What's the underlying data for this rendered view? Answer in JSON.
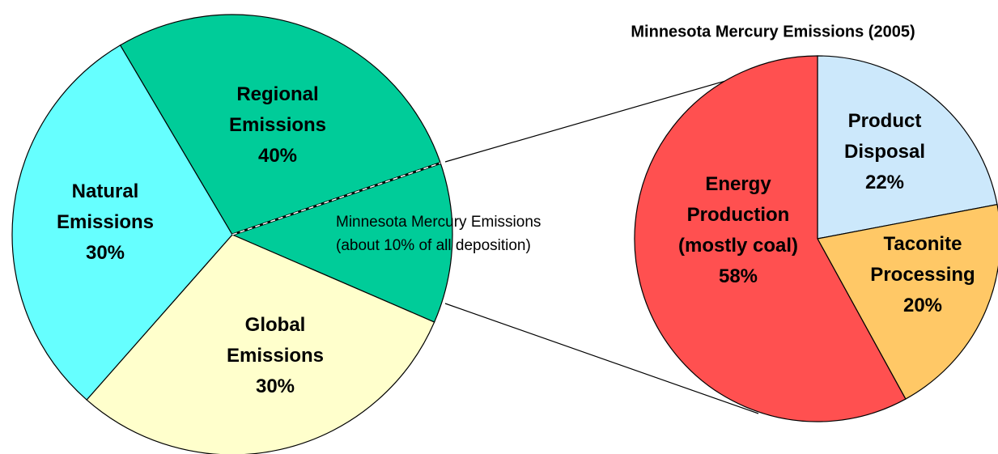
{
  "chart_data": [
    {
      "type": "pie",
      "categories": [
        "Regional\nEmissions",
        "Global\nEmissions",
        "Natural\nEmissions"
      ],
      "values": [
        40,
        30,
        30
      ],
      "value_labels": [
        "40%",
        "30%",
        "30%"
      ],
      "colors": [
        "#00cc99",
        "#ffffcc",
        "#66ffff"
      ],
      "annotation": "Minnesota Mercury Emissions\n(about 10% of all deposition)"
    },
    {
      "type": "pie",
      "title": "Minnesota Mercury Emissions (2005)",
      "categories": [
        "Product\nDisposal",
        "Taconite\nProcessing",
        "Energy\nProduction\n(mostly coal)"
      ],
      "values": [
        22,
        20,
        58
      ],
      "value_labels": [
        "22%",
        "20%",
        "58%"
      ],
      "colors": [
        "#cce8fb",
        "#ffc866",
        "#ff5050"
      ]
    }
  ]
}
